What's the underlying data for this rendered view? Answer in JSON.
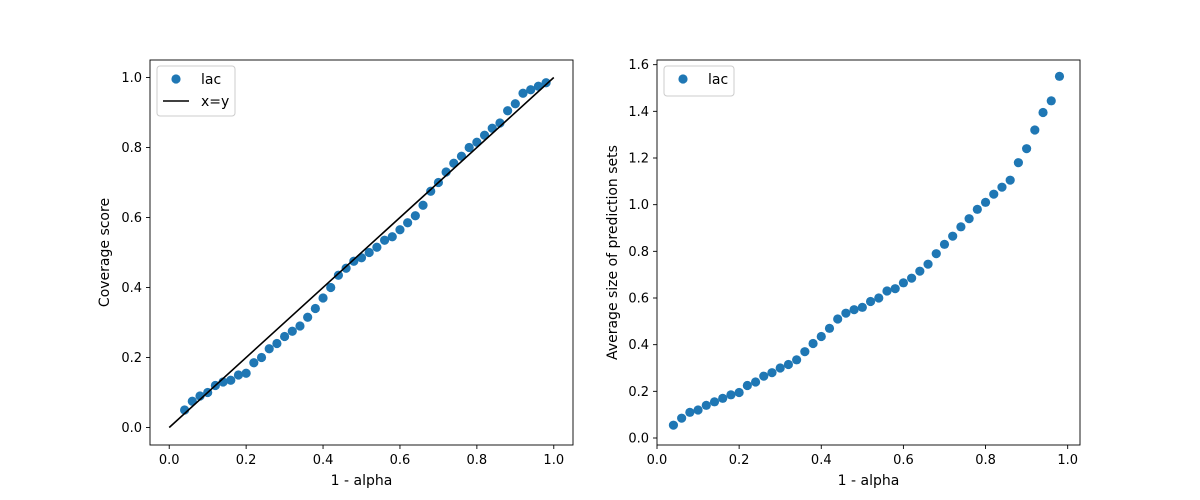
{
  "chart_data": [
    {
      "type": "scatter",
      "xlabel": "1 - alpha",
      "ylabel": "Coverage score",
      "xlim": [
        -0.05,
        1.05
      ],
      "ylim": [
        -0.05,
        1.05
      ],
      "xticks": [
        "0.0",
        "0.2",
        "0.4",
        "0.6",
        "0.8",
        "1.0"
      ],
      "yticks": [
        "0.0",
        "0.2",
        "0.4",
        "0.6",
        "0.8",
        "1.0"
      ],
      "grid": false,
      "legend_position": "top-left",
      "series": [
        {
          "name": "lac",
          "kind": "scatter",
          "color": "#1f77b4",
          "x": [
            0.04,
            0.06,
            0.08,
            0.1,
            0.12,
            0.14,
            0.16,
            0.18,
            0.2,
            0.22,
            0.24,
            0.26,
            0.28,
            0.3,
            0.32,
            0.34,
            0.36,
            0.38,
            0.4,
            0.42,
            0.44,
            0.46,
            0.48,
            0.5,
            0.52,
            0.54,
            0.56,
            0.58,
            0.6,
            0.62,
            0.64,
            0.66,
            0.68,
            0.7,
            0.72,
            0.74,
            0.76,
            0.78,
            0.8,
            0.82,
            0.84,
            0.86,
            0.88,
            0.9,
            0.92,
            0.94,
            0.96,
            0.98
          ],
          "y": [
            0.05,
            0.075,
            0.09,
            0.1,
            0.12,
            0.13,
            0.135,
            0.15,
            0.155,
            0.185,
            0.2,
            0.225,
            0.24,
            0.26,
            0.275,
            0.29,
            0.315,
            0.34,
            0.37,
            0.4,
            0.435,
            0.455,
            0.475,
            0.485,
            0.5,
            0.515,
            0.535,
            0.545,
            0.565,
            0.585,
            0.605,
            0.635,
            0.675,
            0.7,
            0.73,
            0.755,
            0.775,
            0.8,
            0.815,
            0.835,
            0.855,
            0.87,
            0.905,
            0.925,
            0.955,
            0.965,
            0.975,
            0.985
          ]
        },
        {
          "name": "x=y",
          "kind": "line",
          "color": "#000000",
          "x": [
            0.0,
            1.0
          ],
          "y": [
            0.0,
            1.0
          ]
        }
      ]
    },
    {
      "type": "scatter",
      "xlabel": "1 - alpha",
      "ylabel": "Average size of prediction sets",
      "xlim": [
        0.0,
        1.03
      ],
      "ylim": [
        -0.03,
        1.62
      ],
      "xticks": [
        "0.0",
        "0.2",
        "0.4",
        "0.6",
        "0.8",
        "1.0"
      ],
      "yticks": [
        "0.0",
        "0.2",
        "0.4",
        "0.6",
        "0.8",
        "1.0",
        "1.2",
        "1.4",
        "1.6"
      ],
      "grid": false,
      "legend_position": "top-left",
      "series": [
        {
          "name": "lac",
          "kind": "scatter",
          "color": "#1f77b4",
          "x": [
            0.04,
            0.06,
            0.08,
            0.1,
            0.12,
            0.14,
            0.16,
            0.18,
            0.2,
            0.22,
            0.24,
            0.26,
            0.28,
            0.3,
            0.32,
            0.34,
            0.36,
            0.38,
            0.4,
            0.42,
            0.44,
            0.46,
            0.48,
            0.5,
            0.52,
            0.54,
            0.56,
            0.58,
            0.6,
            0.62,
            0.64,
            0.66,
            0.68,
            0.7,
            0.72,
            0.74,
            0.76,
            0.78,
            0.8,
            0.82,
            0.84,
            0.86,
            0.88,
            0.9,
            0.92,
            0.94,
            0.96,
            0.98
          ],
          "y": [
            0.055,
            0.085,
            0.11,
            0.12,
            0.14,
            0.155,
            0.17,
            0.185,
            0.195,
            0.225,
            0.24,
            0.265,
            0.28,
            0.3,
            0.315,
            0.335,
            0.37,
            0.405,
            0.435,
            0.47,
            0.51,
            0.535,
            0.55,
            0.56,
            0.585,
            0.6,
            0.63,
            0.64,
            0.665,
            0.685,
            0.715,
            0.745,
            0.79,
            0.83,
            0.865,
            0.905,
            0.94,
            0.98,
            1.01,
            1.045,
            1.075,
            1.105,
            1.18,
            1.24,
            1.32,
            1.395,
            1.445,
            1.55
          ]
        }
      ]
    }
  ]
}
